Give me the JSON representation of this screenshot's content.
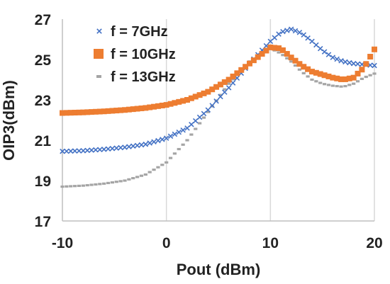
{
  "chart_data": {
    "type": "scatter",
    "title": "",
    "xlabel": "Pout (dBm)",
    "ylabel": "OIP3(dBm)",
    "xlim": [
      -10,
      20
    ],
    "ylim": [
      17,
      27
    ],
    "xticks": [
      -10,
      0,
      10,
      20
    ],
    "yticks": [
      17,
      19,
      21,
      23,
      25,
      27
    ],
    "xtick_labels": [
      "-10",
      "0",
      "10",
      "20"
    ],
    "ytick_labels": [
      "17",
      "19",
      "21",
      "23",
      "25",
      "27"
    ],
    "grid": "vertical",
    "legend_position": "top-left",
    "series": [
      {
        "name": "f = 7GHz",
        "marker": "x",
        "color": "#4472C4",
        "points": [
          [
            -10,
            20.45
          ],
          [
            -8,
            20.48
          ],
          [
            -6,
            20.55
          ],
          [
            -4,
            20.65
          ],
          [
            -2,
            20.8
          ],
          [
            0,
            21.1
          ],
          [
            2,
            21.6
          ],
          [
            4,
            22.5
          ],
          [
            6,
            23.6
          ],
          [
            8,
            24.8
          ],
          [
            10,
            25.9
          ],
          [
            11,
            26.35
          ],
          [
            12,
            26.5
          ],
          [
            13,
            26.3
          ],
          [
            14,
            25.9
          ],
          [
            15,
            25.45
          ],
          [
            16,
            25.1
          ],
          [
            17,
            24.9
          ],
          [
            18,
            24.8
          ],
          [
            19,
            24.75
          ],
          [
            20,
            24.7
          ]
        ]
      },
      {
        "name": "f = 10GHz",
        "marker": "square",
        "color": "#ED7D31",
        "points": [
          [
            -10,
            22.35
          ],
          [
            -8,
            22.38
          ],
          [
            -6,
            22.43
          ],
          [
            -4,
            22.5
          ],
          [
            -2,
            22.6
          ],
          [
            0,
            22.75
          ],
          [
            2,
            23.0
          ],
          [
            4,
            23.4
          ],
          [
            6,
            24.0
          ],
          [
            8,
            24.8
          ],
          [
            10,
            25.6
          ],
          [
            11,
            25.55
          ],
          [
            12,
            25.1
          ],
          [
            13,
            24.7
          ],
          [
            14,
            24.4
          ],
          [
            15,
            24.25
          ],
          [
            16,
            24.1
          ],
          [
            17,
            24.0
          ],
          [
            18,
            24.1
          ],
          [
            19,
            24.6
          ],
          [
            20,
            25.5
          ]
        ]
      },
      {
        "name": "f = 13GHz",
        "marker": "dash",
        "color": "#A5A5A5",
        "points": [
          [
            -10,
            18.7
          ],
          [
            -8,
            18.75
          ],
          [
            -6,
            18.85
          ],
          [
            -4,
            19.0
          ],
          [
            -2,
            19.3
          ],
          [
            0,
            19.9
          ],
          [
            2,
            21.0
          ],
          [
            4,
            22.4
          ],
          [
            6,
            23.8
          ],
          [
            8,
            24.9
          ],
          [
            10,
            25.55
          ],
          [
            11,
            25.3
          ],
          [
            12,
            24.9
          ],
          [
            13,
            24.4
          ],
          [
            14,
            24.0
          ],
          [
            15,
            23.8
          ],
          [
            16,
            23.7
          ],
          [
            17,
            23.65
          ],
          [
            18,
            23.8
          ],
          [
            19,
            24.1
          ],
          [
            20,
            24.3
          ]
        ]
      }
    ]
  }
}
